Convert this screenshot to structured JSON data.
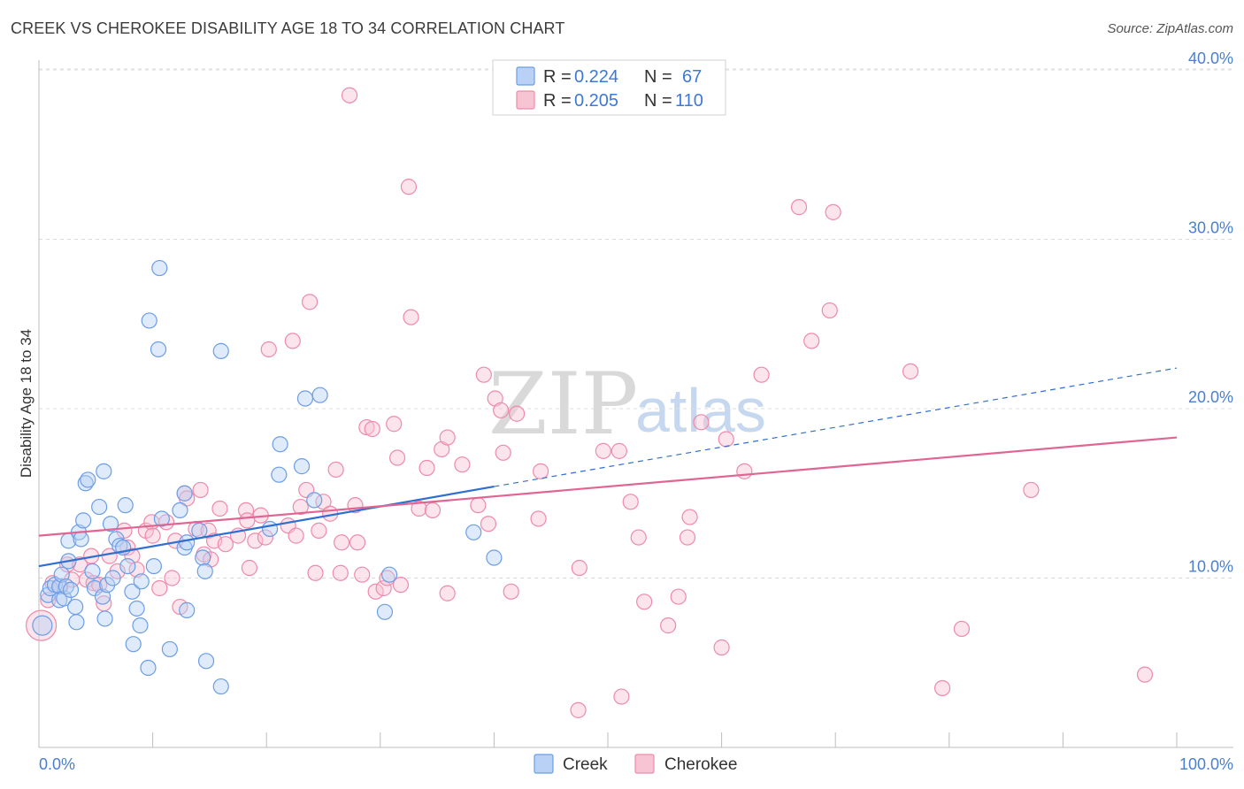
{
  "title": "CREEK VS CHEROKEE DISABILITY AGE 18 TO 34 CORRELATION CHART",
  "source": "Source: ZipAtlas.com",
  "watermark": {
    "part1": "ZIP",
    "part2": "atlas"
  },
  "legend": {
    "rows": [
      {
        "r_label": "R = ",
        "r_value": "0.224",
        "n_label": "N = ",
        "n_value": "67"
      },
      {
        "r_label": "R = ",
        "r_value": "0.205",
        "n_label": "N = ",
        "n_value": "110"
      }
    ]
  },
  "colors": {
    "creek": "#6b9ee6",
    "creek_fill": "#b9d1f4",
    "cherokee": "#ee8aaa",
    "cherokee_fill": "#f7c4d4",
    "creek_line": "#2f6fd0",
    "cherokee_line": "#e06592"
  },
  "chart_data": {
    "type": "scatter",
    "title": "CREEK VS CHEROKEE DISABILITY AGE 18 TO 34 CORRELATION CHART",
    "xlabel": "",
    "ylabel": "Disability Age 18 to 34",
    "xlim": [
      0,
      100
    ],
    "ylim": [
      0,
      40.5
    ],
    "x_tick_labels": [
      "0.0%",
      "100.0%"
    ],
    "y_ticks": [
      10,
      20,
      30,
      40
    ],
    "y_tick_labels": [
      "10.0%",
      "20.0%",
      "30.0%",
      "40.0%"
    ],
    "series": [
      {
        "name": "Creek",
        "R": 0.224,
        "N": 67,
        "trend": {
          "x0": 0,
          "y0": 10.7,
          "x1": 40,
          "y1": 15.4,
          "dash_to_x": 100,
          "dash_to_y": 22.4
        },
        "points": [
          [
            0.3,
            7.2
          ],
          [
            0.8,
            9.0
          ],
          [
            1.0,
            9.4
          ],
          [
            1.4,
            9.6
          ],
          [
            1.8,
            9.5
          ],
          [
            1.8,
            8.7
          ],
          [
            2.0,
            10.2
          ],
          [
            2.2,
            8.8
          ],
          [
            2.4,
            9.5
          ],
          [
            2.6,
            11.0
          ],
          [
            2.6,
            12.2
          ],
          [
            2.8,
            9.3
          ],
          [
            3.2,
            8.3
          ],
          [
            3.3,
            7.4
          ],
          [
            3.5,
            12.7
          ],
          [
            3.7,
            12.3
          ],
          [
            3.9,
            13.4
          ],
          [
            4.1,
            15.6
          ],
          [
            4.3,
            15.8
          ],
          [
            4.7,
            10.4
          ],
          [
            4.9,
            9.4
          ],
          [
            5.3,
            14.2
          ],
          [
            5.6,
            8.9
          ],
          [
            5.7,
            16.3
          ],
          [
            5.8,
            7.6
          ],
          [
            6.0,
            9.6
          ],
          [
            6.3,
            13.2
          ],
          [
            6.5,
            10.0
          ],
          [
            6.8,
            12.3
          ],
          [
            7.1,
            11.9
          ],
          [
            7.4,
            11.8
          ],
          [
            7.6,
            14.3
          ],
          [
            7.8,
            10.7
          ],
          [
            8.2,
            9.2
          ],
          [
            8.3,
            6.1
          ],
          [
            8.6,
            8.2
          ],
          [
            8.9,
            7.2
          ],
          [
            9.0,
            9.8
          ],
          [
            9.6,
            4.7
          ],
          [
            9.7,
            25.2
          ],
          [
            10.1,
            10.7
          ],
          [
            10.5,
            23.5
          ],
          [
            10.6,
            28.3
          ],
          [
            10.8,
            13.5
          ],
          [
            11.5,
            5.8
          ],
          [
            12.4,
            14.0
          ],
          [
            12.8,
            11.8
          ],
          [
            12.8,
            15.0
          ],
          [
            13.0,
            12.1
          ],
          [
            13.0,
            8.1
          ],
          [
            14.1,
            12.8
          ],
          [
            14.4,
            11.2
          ],
          [
            14.6,
            10.4
          ],
          [
            14.7,
            5.1
          ],
          [
            16.0,
            23.4
          ],
          [
            16.0,
            3.6
          ],
          [
            20.3,
            12.9
          ],
          [
            21.1,
            16.1
          ],
          [
            21.2,
            17.9
          ],
          [
            23.1,
            16.6
          ],
          [
            23.4,
            20.6
          ],
          [
            24.2,
            14.6
          ],
          [
            24.7,
            20.8
          ],
          [
            30.8,
            10.2
          ],
          [
            30.4,
            8.0
          ],
          [
            38.2,
            12.7
          ],
          [
            40.0,
            11.2
          ]
        ]
      },
      {
        "name": "Cherokee",
        "R": 0.205,
        "N": 110,
        "trend": {
          "x0": 0,
          "y0": 12.5,
          "x1": 100,
          "y1": 18.3
        },
        "points": [
          [
            0.2,
            7.2
          ],
          [
            0.8,
            8.7
          ],
          [
            1.2,
            9.7
          ],
          [
            1.9,
            9.5
          ],
          [
            2.5,
            10.8
          ],
          [
            2.9,
            9.9
          ],
          [
            3.6,
            10.8
          ],
          [
            4.2,
            9.9
          ],
          [
            4.6,
            11.3
          ],
          [
            4.8,
            9.7
          ],
          [
            5.3,
            9.6
          ],
          [
            5.7,
            8.5
          ],
          [
            6.2,
            11.3
          ],
          [
            6.9,
            10.4
          ],
          [
            7.5,
            12.8
          ],
          [
            7.8,
            11.8
          ],
          [
            8.2,
            11.3
          ],
          [
            8.6,
            10.5
          ],
          [
            9.4,
            12.8
          ],
          [
            9.9,
            13.3
          ],
          [
            10.0,
            12.5
          ],
          [
            10.6,
            9.4
          ],
          [
            11.2,
            13.3
          ],
          [
            11.7,
            10.0
          ],
          [
            12.0,
            12.2
          ],
          [
            12.4,
            8.3
          ],
          [
            12.8,
            15.0
          ],
          [
            13.0,
            14.7
          ],
          [
            13.8,
            12.9
          ],
          [
            14.2,
            15.2
          ],
          [
            14.5,
            11.4
          ],
          [
            14.9,
            12.8
          ],
          [
            15.1,
            11.1
          ],
          [
            15.4,
            12.2
          ],
          [
            15.9,
            14.1
          ],
          [
            16.4,
            12.0
          ],
          [
            17.5,
            12.5
          ],
          [
            18.2,
            14.0
          ],
          [
            18.3,
            13.4
          ],
          [
            18.5,
            10.6
          ],
          [
            19.0,
            12.2
          ],
          [
            19.5,
            13.7
          ],
          [
            19.9,
            12.4
          ],
          [
            20.2,
            23.5
          ],
          [
            21.9,
            13.1
          ],
          [
            22.3,
            24.0
          ],
          [
            22.6,
            12.5
          ],
          [
            23.0,
            14.2
          ],
          [
            23.5,
            15.2
          ],
          [
            23.8,
            26.3
          ],
          [
            24.3,
            10.3
          ],
          [
            24.6,
            12.8
          ],
          [
            25.0,
            14.5
          ],
          [
            25.6,
            13.8
          ],
          [
            26.1,
            16.4
          ],
          [
            26.5,
            10.3
          ],
          [
            26.6,
            12.1
          ],
          [
            27.3,
            38.5
          ],
          [
            27.8,
            14.3
          ],
          [
            28.0,
            12.1
          ],
          [
            28.4,
            10.2
          ],
          [
            28.8,
            18.9
          ],
          [
            29.3,
            18.8
          ],
          [
            29.6,
            9.2
          ],
          [
            30.3,
            9.4
          ],
          [
            30.6,
            10.0
          ],
          [
            31.2,
            19.1
          ],
          [
            31.5,
            17.1
          ],
          [
            31.8,
            9.6
          ],
          [
            32.5,
            33.1
          ],
          [
            32.7,
            25.4
          ],
          [
            33.4,
            14.1
          ],
          [
            34.1,
            16.5
          ],
          [
            34.6,
            14.0
          ],
          [
            35.4,
            17.6
          ],
          [
            35.9,
            18.3
          ],
          [
            35.9,
            9.1
          ],
          [
            37.2,
            16.7
          ],
          [
            38.6,
            14.3
          ],
          [
            39.1,
            22.0
          ],
          [
            39.5,
            13.2
          ],
          [
            40.1,
            20.6
          ],
          [
            40.6,
            19.9
          ],
          [
            40.8,
            17.4
          ],
          [
            41.5,
            9.2
          ],
          [
            42.0,
            19.7
          ],
          [
            43.9,
            13.5
          ],
          [
            44.1,
            16.3
          ],
          [
            47.5,
            10.6
          ],
          [
            47.4,
            2.2
          ],
          [
            49.6,
            17.5
          ],
          [
            51.0,
            17.5
          ],
          [
            51.2,
            3.0
          ],
          [
            52.0,
            14.5
          ],
          [
            52.7,
            12.4
          ],
          [
            53.2,
            8.6
          ],
          [
            55.3,
            7.2
          ],
          [
            56.2,
            8.9
          ],
          [
            57.0,
            12.4
          ],
          [
            57.2,
            13.6
          ],
          [
            58.2,
            19.2
          ],
          [
            60.0,
            5.9
          ],
          [
            60.4,
            18.2
          ],
          [
            62.0,
            16.3
          ],
          [
            63.5,
            22.0
          ],
          [
            66.8,
            31.9
          ],
          [
            67.9,
            24.0
          ],
          [
            69.5,
            25.8
          ],
          [
            69.8,
            31.6
          ],
          [
            76.6,
            22.2
          ],
          [
            79.4,
            3.5
          ],
          [
            81.1,
            7.0
          ],
          [
            87.2,
            15.2
          ],
          [
            97.2,
            4.3
          ]
        ]
      }
    ]
  },
  "bottom_legend": {
    "creek": "Creek",
    "cherokee": "Cherokee"
  }
}
